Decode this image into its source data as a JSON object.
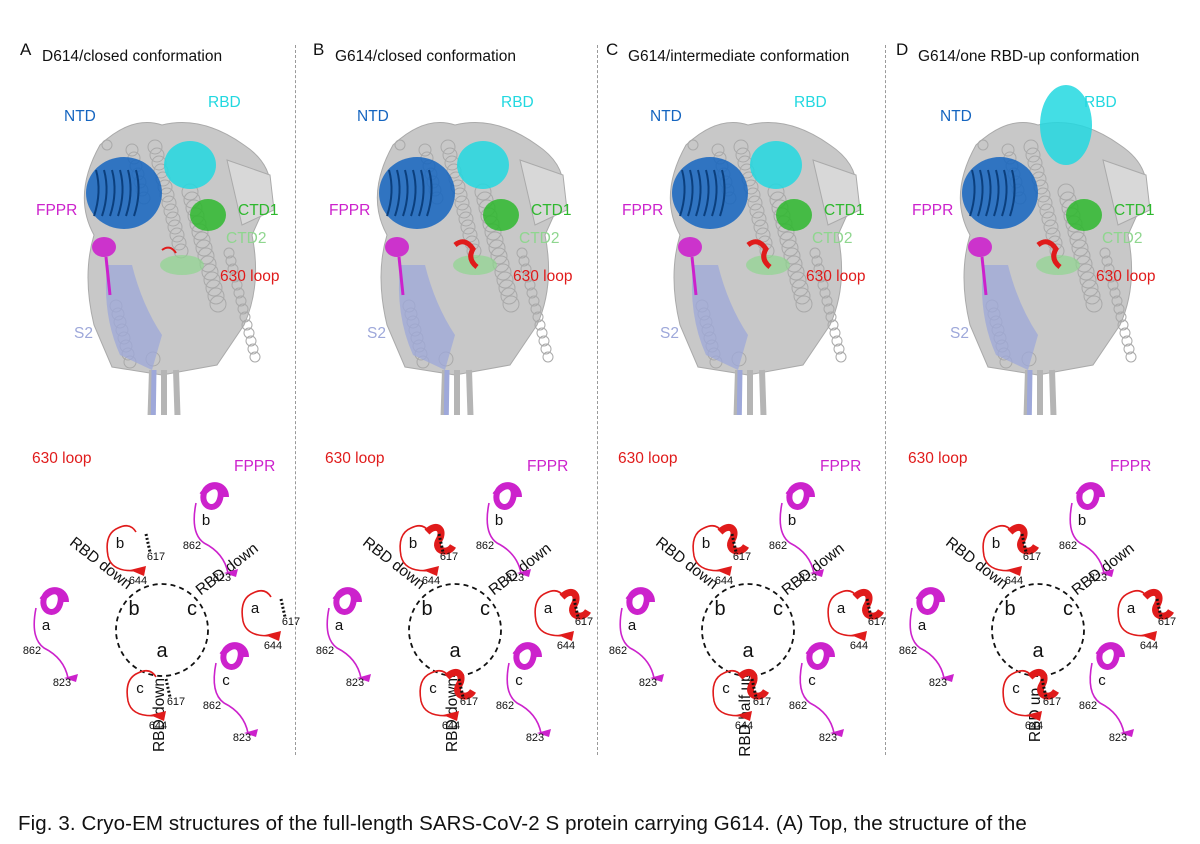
{
  "panels": [
    {
      "label": "A",
      "title": "D614/closed conformation",
      "struct": {
        "ntd": "NTD",
        "rbd": "RBD",
        "fppr": "FPPR",
        "ctd1": "CTD1",
        "ctd2": "CTD2",
        "loop": "630 loop",
        "s2": "S2"
      },
      "diag": {
        "loop": "630 loop",
        "fppr": "FPPR",
        "center": [
          "b",
          "c",
          "a"
        ],
        "states": [
          "RBD down",
          "RBD down",
          "RBD down"
        ],
        "sub": [
          "b",
          "b",
          "a",
          "a",
          "c",
          "c"
        ],
        "res": [
          "617",
          "644",
          "862",
          "823",
          "617",
          "644",
          "862",
          "823",
          "617",
          "644",
          "862",
          "823"
        ]
      }
    },
    {
      "label": "B",
      "title": "G614/closed conformation",
      "struct": {
        "ntd": "NTD",
        "rbd": "RBD",
        "fppr": "FPPR",
        "ctd1": "CTD1",
        "ctd2": "CTD2",
        "loop": "630 loop",
        "s2": "S2"
      },
      "diag": {
        "loop": "630 loop",
        "fppr": "FPPR",
        "center": [
          "b",
          "c",
          "a"
        ],
        "states": [
          "RBD down",
          "RBD down",
          "RBD down"
        ],
        "sub": [
          "b",
          "b",
          "a",
          "a",
          "c",
          "c"
        ],
        "res": [
          "617",
          "644",
          "862",
          "823",
          "617",
          "644",
          "862",
          "823",
          "617",
          "644",
          "862",
          "823"
        ]
      }
    },
    {
      "label": "C",
      "title": "G614/intermediate conformation",
      "struct": {
        "ntd": "NTD",
        "rbd": "RBD",
        "fppr": "FPPR",
        "ctd1": "CTD1",
        "ctd2": "CTD2",
        "loop": "630 loop",
        "s2": "S2"
      },
      "diag": {
        "loop": "630 loop",
        "fppr": "FPPR",
        "center": [
          "b",
          "c",
          "a"
        ],
        "states": [
          "RBD down",
          "RBD down",
          "RBD half up"
        ],
        "sub": [
          "b",
          "b",
          "a",
          "a",
          "c",
          "c"
        ],
        "res": [
          "617",
          "644",
          "862",
          "823",
          "617",
          "644",
          "862",
          "823",
          "617",
          "644",
          "862",
          "823"
        ]
      }
    },
    {
      "label": "D",
      "title": "G614/one RBD-up conformation",
      "struct": {
        "ntd": "NTD",
        "rbd": "RBD",
        "fppr": "FPPR",
        "ctd1": "CTD1",
        "ctd2": "CTD2",
        "loop": "630 loop",
        "s2": "S2"
      },
      "diag": {
        "loop": "630 loop",
        "fppr": "FPPR",
        "center": [
          "b",
          "c",
          "a"
        ],
        "states": [
          "RBD down",
          "RBD down",
          "RBD up"
        ],
        "sub": [
          "b",
          "b",
          "a",
          "a",
          "c",
          "c"
        ],
        "res": [
          "617",
          "644",
          "862",
          "823",
          "617",
          "644",
          "862",
          "823",
          "617",
          "644",
          "862",
          "823"
        ]
      }
    }
  ],
  "caption": {
    "bold": "Fig. 3. Cryo-EM structures of the full-length SARS-CoV-2 S protein carrying G614.",
    "rest": " (A) Top, the structure of the"
  },
  "colors": {
    "ntd": "#1565c0",
    "rbd": "#22d8e0",
    "fppr": "#cc22cc",
    "ctd1": "#2eb82e",
    "ctd2": "#8fd68f",
    "loop": "#e01b1b",
    "s2": "#9ea8da",
    "grey": "#c8c8c8"
  }
}
